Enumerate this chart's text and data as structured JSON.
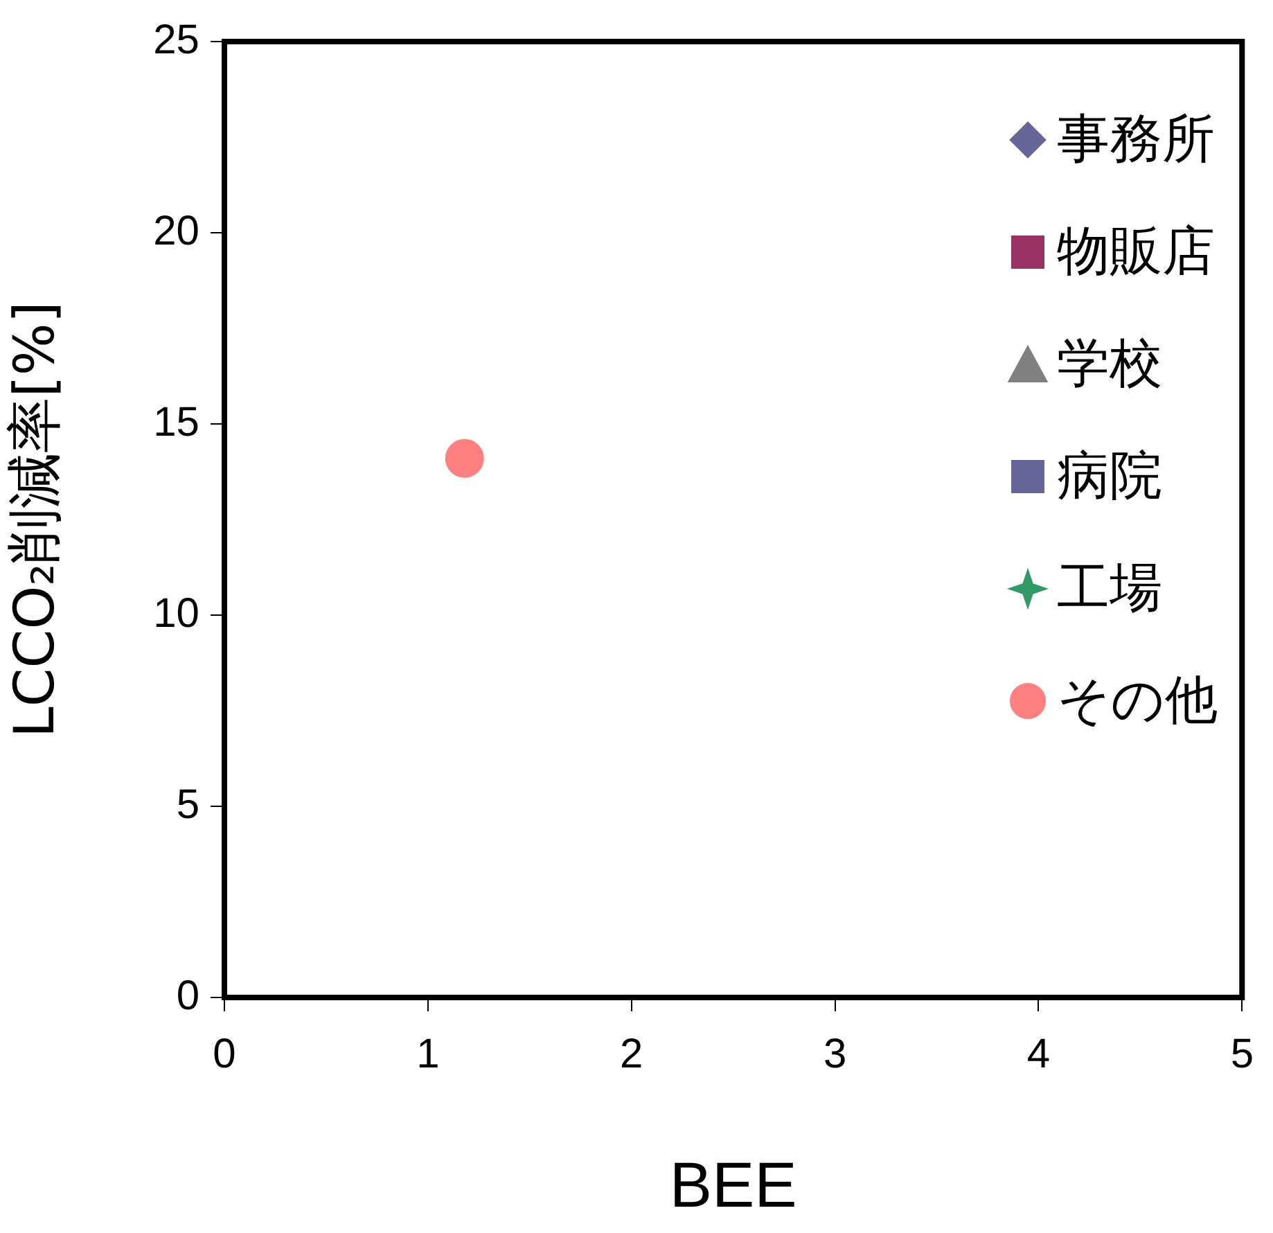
{
  "chart_data": {
    "type": "scatter",
    "xlabel": "BEE",
    "ylabel": "LCCO₂削減率[%]",
    "xlim": [
      0,
      5
    ],
    "xticks": [
      0,
      1,
      2,
      3,
      4,
      5
    ],
    "ylim": [
      0,
      25
    ],
    "yticks": [
      0,
      5,
      10,
      15,
      20,
      25
    ],
    "grid": false,
    "legend": "top right",
    "series": [
      {
        "name": "事務所",
        "color": "#666699",
        "marker": "diamond"
      },
      {
        "name": "物販店",
        "color": "#993366",
        "marker": "square"
      },
      {
        "name": "学校",
        "color": "#808080",
        "marker": "triangle"
      },
      {
        "name": "病院",
        "color": "#666699",
        "marker": "square"
      },
      {
        "name": "工場",
        "color": "#339966",
        "marker": "star"
      },
      {
        "name": "その他",
        "color": "#ff8080",
        "marker": "circle",
        "x": [
          1.18
        ],
        "values": [
          14.1
        ]
      }
    ]
  }
}
